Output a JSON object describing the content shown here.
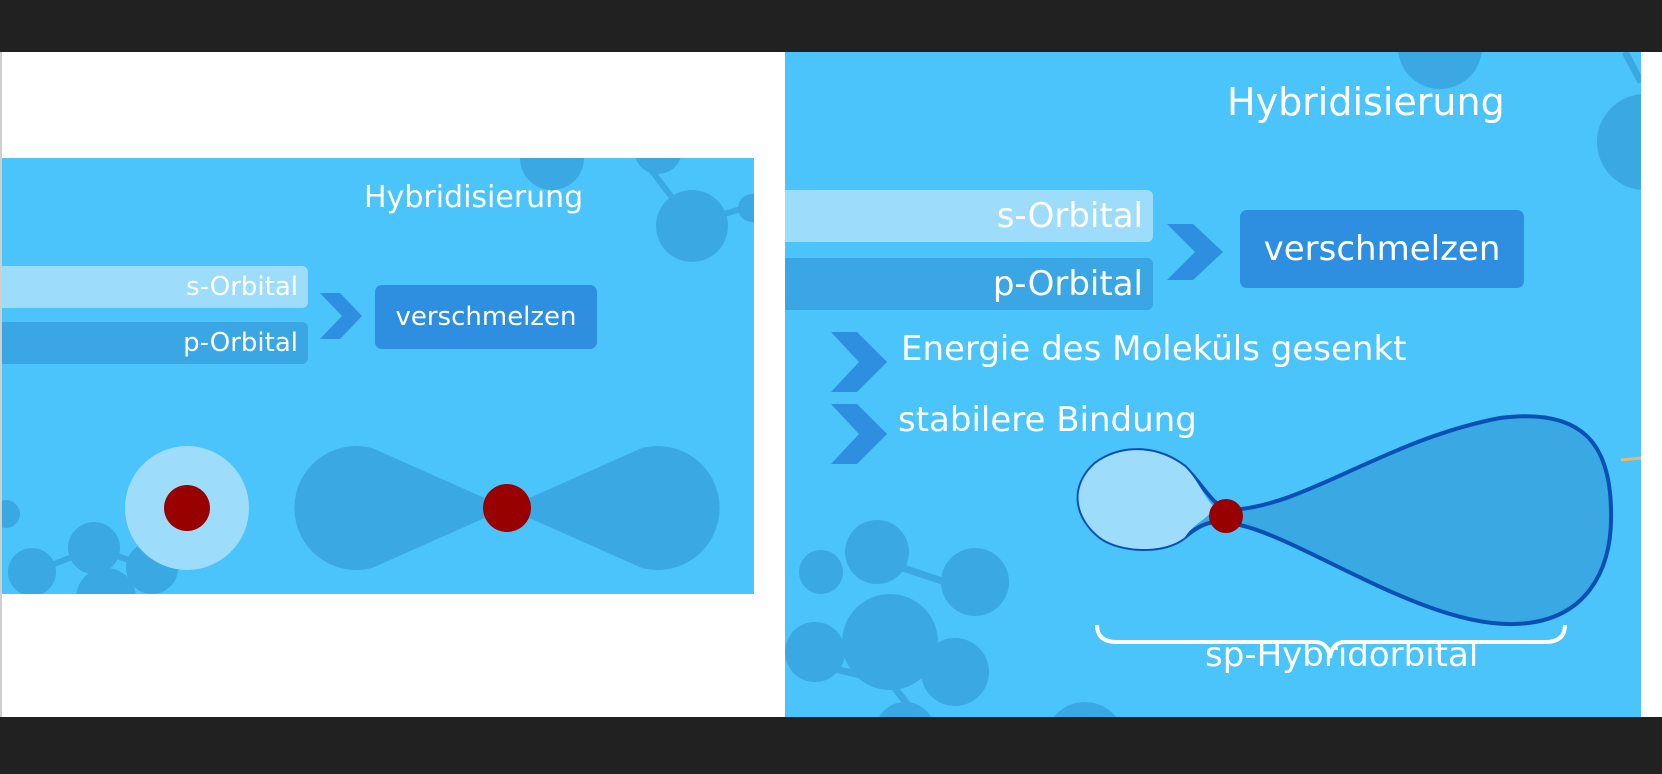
{
  "left_slide": {
    "title": "Hybridisierung",
    "s_orbital": "s-Orbital",
    "p_orbital": "p-Orbital",
    "merge": "verschmelzen"
  },
  "right_slide": {
    "title": "Hybridisierung",
    "s_orbital": "s-Orbital",
    "p_orbital": "p-Orbital",
    "merge": "verschmelzen",
    "bullets": [
      "Energie des Moleküls gesenkt",
      "stabilere Bindung"
    ],
    "hybrid_label": "sp-Hybridorbital"
  },
  "colors": {
    "background": "#4bc3fb",
    "s_orbital_bar": "#9edcfc",
    "p_orbital_bar": "#3aa7e4",
    "merge_box": "#2e8ee0",
    "nucleus": "#990000",
    "orbital_outline": "#0a4fb5",
    "frame_bars": "#212121"
  },
  "icons": [
    "chevron-right-icon",
    "molecule-decoration",
    "nucleus-dot"
  ]
}
